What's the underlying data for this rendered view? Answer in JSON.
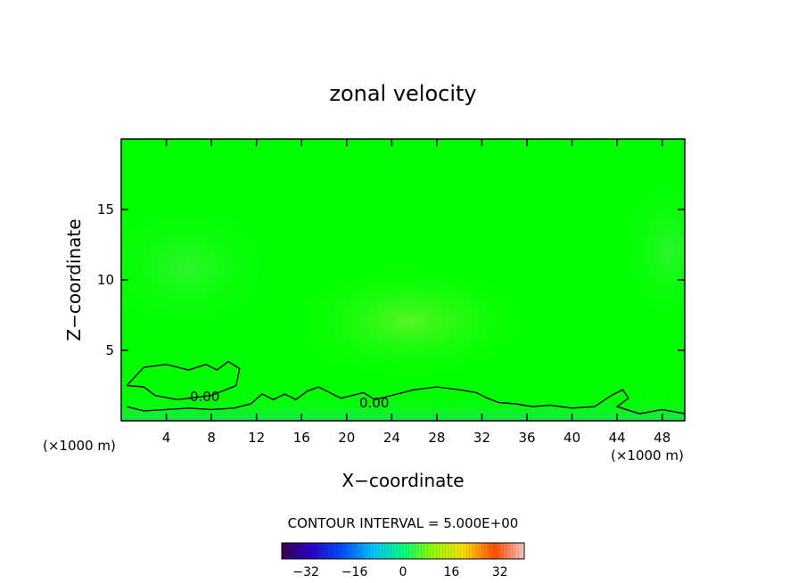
{
  "chart_data": {
    "type": "heatmap",
    "title": "zonal velocity",
    "xlabel": "X−coordinate",
    "ylabel": "Z−coordinate",
    "xlim": [
      0,
      50
    ],
    "ylim": [
      0,
      20
    ],
    "x_ticks": [
      4,
      8,
      12,
      16,
      20,
      24,
      28,
      32,
      36,
      40,
      44,
      48
    ],
    "x_tick_labels": [
      "4",
      "8",
      "12",
      "16",
      "20",
      "24",
      "28",
      "32",
      "36",
      "40",
      "44",
      "48"
    ],
    "y_ticks": [
      5,
      10,
      15
    ],
    "y_tick_labels": [
      "5",
      "10",
      "15"
    ],
    "x_scale_note_left": "(×1000 m)",
    "x_scale_note_right": "(×1000 m)",
    "contour_interval_text": "CONTOUR INTERVAL = 5.000E+00",
    "contour_label": "0.00",
    "contour_level": 0.0,
    "colorbar": {
      "range": [
        -40,
        40
      ],
      "ticks": [
        -32,
        -16,
        0,
        16,
        32
      ],
      "tick_labels": [
        "−32",
        "−16",
        "0",
        "16",
        "32"
      ],
      "colormap": "rainbow (purple-blue-cyan-green-yellow-red)"
    },
    "background_color": "#00ff00",
    "zero_contour": {
      "upper_lobe": [
        [
          0.5,
          2.5
        ],
        [
          2,
          3.8
        ],
        [
          4,
          4.0
        ],
        [
          6,
          3.6
        ],
        [
          7.5,
          4.0
        ],
        [
          8.5,
          3.6
        ],
        [
          9.5,
          4.2
        ],
        [
          10.5,
          3.7
        ],
        [
          10.2,
          2.5
        ],
        [
          8,
          1.8
        ],
        [
          5,
          1.5
        ],
        [
          3,
          1.8
        ],
        [
          2,
          2.4
        ],
        [
          0.5,
          2.5
        ]
      ],
      "lower_line": [
        [
          0.5,
          1.0
        ],
        [
          2,
          0.7
        ],
        [
          4,
          0.8
        ],
        [
          6,
          0.9
        ],
        [
          8,
          0.8
        ],
        [
          10,
          0.9
        ],
        [
          11.5,
          1.2
        ],
        [
          12.5,
          1.9
        ],
        [
          13.5,
          1.5
        ],
        [
          14.5,
          1.9
        ],
        [
          15.5,
          1.5
        ],
        [
          16.5,
          2.1
        ],
        [
          17.5,
          2.4
        ],
        [
          18.5,
          2.0
        ],
        [
          19.5,
          1.6
        ],
        [
          20.5,
          1.8
        ],
        [
          21.5,
          2.0
        ],
        [
          22.5,
          1.5
        ],
        [
          24,
          1.8
        ],
        [
          26,
          2.2
        ],
        [
          28,
          2.4
        ],
        [
          30,
          2.2
        ],
        [
          31.5,
          2.0
        ],
        [
          32.5,
          1.6
        ],
        [
          33.5,
          1.3
        ],
        [
          35,
          1.2
        ],
        [
          36.5,
          1.0
        ],
        [
          38,
          1.1
        ],
        [
          40,
          0.9
        ],
        [
          42,
          1.0
        ],
        [
          43.5,
          1.8
        ],
        [
          44.5,
          2.2
        ],
        [
          45,
          1.6
        ],
        [
          44,
          1.0
        ],
        [
          46,
          0.5
        ],
        [
          48,
          0.8
        ],
        [
          50,
          0.5
        ]
      ]
    }
  }
}
